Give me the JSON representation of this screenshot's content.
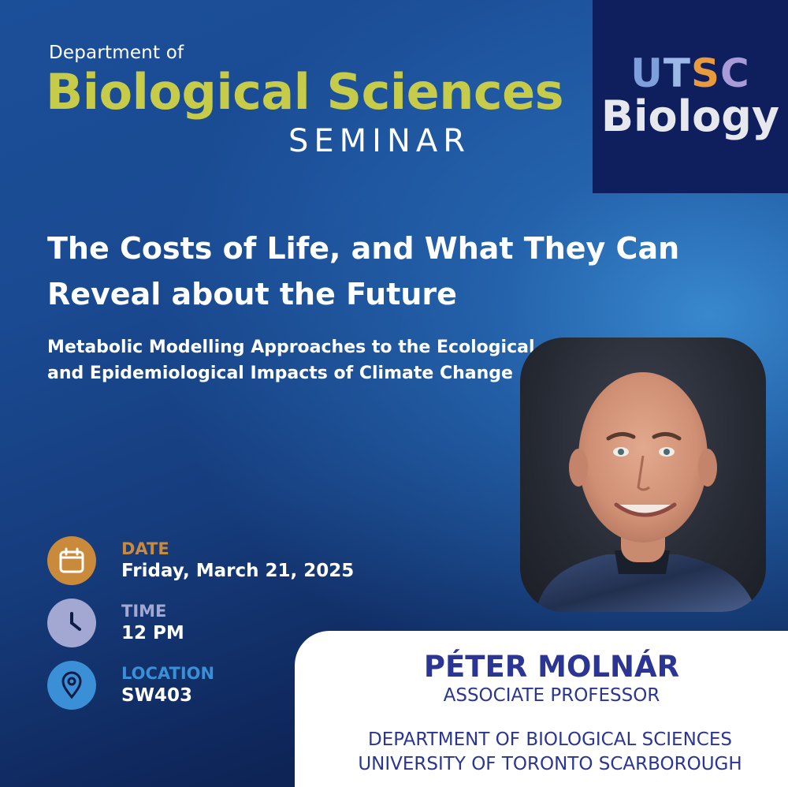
{
  "header": {
    "dept_of": "Department of",
    "dept_name": "Biological Sciences",
    "seminar": "SEMINAR"
  },
  "logo": {
    "u": "U",
    "t": "T",
    "s": "S",
    "c": "C",
    "bio": "Biology"
  },
  "talk": {
    "title": "The Costs of Life, and What They Can Reveal about the Future",
    "subtitle": "Metabolic Modelling Approaches to the Ecological and Epidemiological Impacts of Climate Change"
  },
  "details": {
    "date_label": "DATE",
    "date_value": "Friday, March 21, 2025",
    "time_label": "TIME",
    "time_value": "12 PM",
    "location_label": "LOCATION",
    "location_value": "SW403"
  },
  "speaker": {
    "name": "PÉTER MOLNÁR",
    "role": "ASSOCIATE PROFESSOR",
    "department": "DEPARTMENT OF BIOLOGICAL SCIENCES",
    "university": "UNIVERSITY OF TORONTO SCARBOROUGH"
  },
  "colors": {
    "accent_green": "#c6cc4a",
    "date_orange": "#c98a3c",
    "time_lavender": "#a3a8d2",
    "location_blue": "#3a8fd6",
    "speaker_navy": "#2a3594",
    "logo_navy": "#0f1f5e"
  },
  "icons": {
    "date": "calendar-icon",
    "time": "clock-icon",
    "location": "map-pin-icon"
  }
}
